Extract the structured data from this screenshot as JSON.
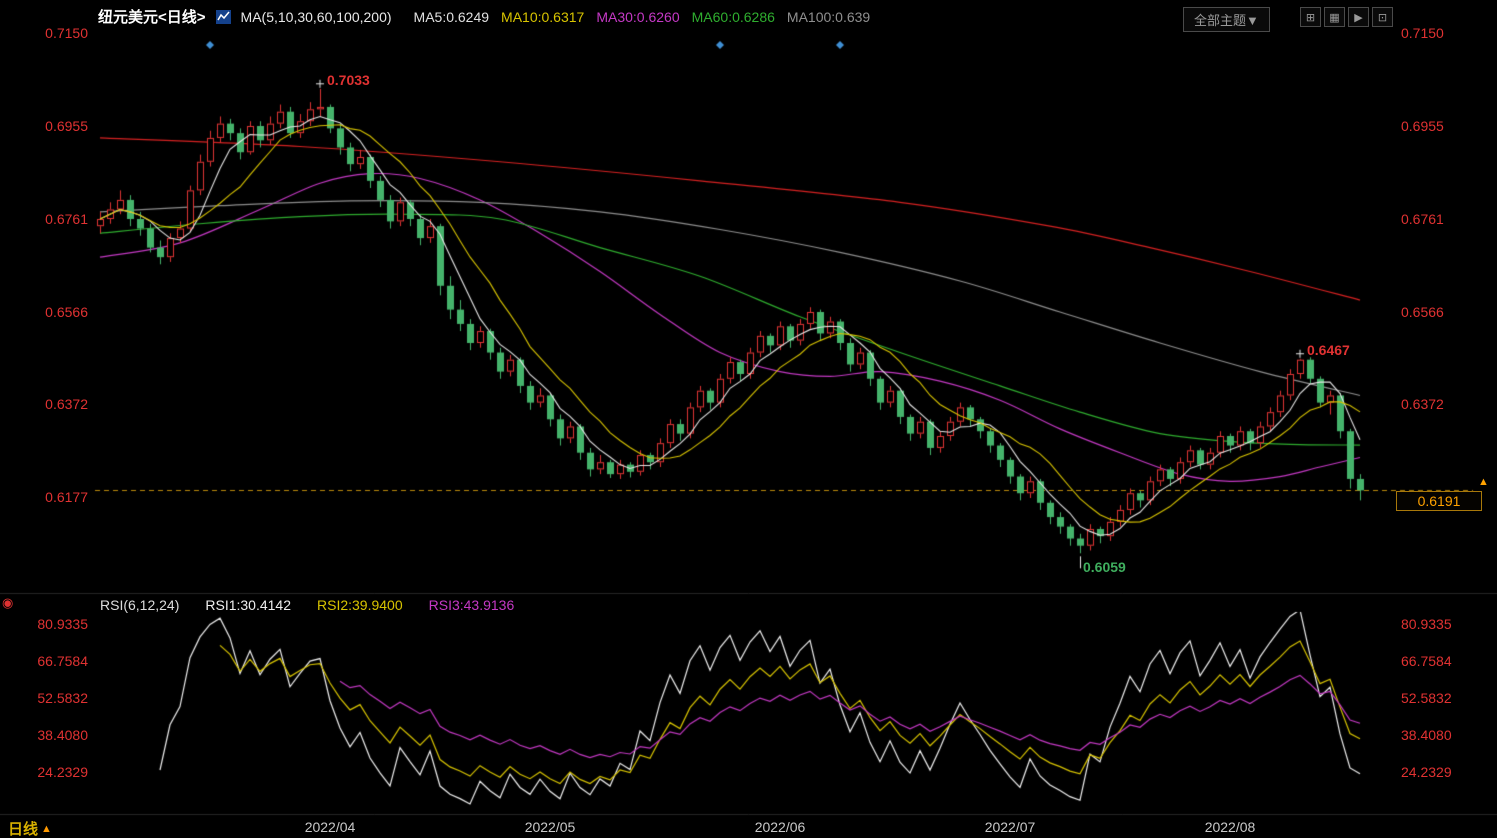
{
  "header": {
    "title": "纽元美元<日线>",
    "ma_group_label": "MA(5,10,30,60,100,200)",
    "ma_values": [
      {
        "name": "MA5",
        "label": "MA5:0.6249",
        "color": "#e0e0e0"
      },
      {
        "name": "MA10",
        "label": "MA10:0.6317",
        "color": "#d8c400"
      },
      {
        "name": "MA30",
        "label": "MA30:0.6260",
        "color": "#c539c5"
      },
      {
        "name": "MA60",
        "label": "MA60:0.6286",
        "color": "#2fae2f"
      },
      {
        "name": "MA100",
        "label": "MA100:0.639",
        "color": "#8f8f8f"
      }
    ],
    "theme_button_label": "全部主题▼",
    "toolbar_icons": [
      {
        "name": "layout-grid-icon",
        "glyph": "⊞"
      },
      {
        "name": "chart-panel-icon",
        "glyph": "▦"
      },
      {
        "name": "play-icon",
        "glyph": "▶"
      },
      {
        "name": "duplicate-window-icon",
        "glyph": "⊡"
      }
    ]
  },
  "rsi_header": {
    "group": "RSI(6,12,24)",
    "rsi1": {
      "label": "RSI1:30.4142",
      "color": "#f0f0f0"
    },
    "rsi2": {
      "label": "RSI2:39.9400",
      "color": "#d8c400"
    },
    "rsi3": {
      "label": "RSI3:43.9136",
      "color": "#c539c5"
    }
  },
  "price_tag": {
    "label": "0.6191"
  },
  "alert_arrow": "▲",
  "footer": {
    "period_label": "日线",
    "arrow": "▲"
  },
  "chart_data": {
    "type": "candlestick",
    "symbol": "纽元美元",
    "period": "日线",
    "colors": {
      "up": "#e13434",
      "down": "#45b36b",
      "axis_label": "#e03232",
      "time_label": "#c8c8c8",
      "dashed_line": "#bb8a0b",
      "price_tag_text": "#ffa200",
      "diamond_marker": "#3f8fd4",
      "separator": "#262626"
    },
    "price_ticks_left": [
      {
        "label": "0.7150",
        "price": 0.715
      },
      {
        "label": "0.6955",
        "price": 0.6955
      },
      {
        "label": "0.6761",
        "price": 0.6761
      },
      {
        "label": "0.6566",
        "price": 0.6566
      },
      {
        "label": "0.6372",
        "price": 0.6372
      },
      {
        "label": "0.6177",
        "price": 0.6177
      }
    ],
    "price_ticks_right": [
      {
        "label": "0.7150",
        "price": 0.715
      },
      {
        "label": "0.6955",
        "price": 0.6955
      },
      {
        "label": "0.6761",
        "price": 0.6761
      },
      {
        "label": "0.6566",
        "price": 0.6566
      },
      {
        "label": "0.6372",
        "price": 0.6372
      }
    ],
    "rsi_ticks": [
      {
        "label": "80.9335",
        "value": 80.9335
      },
      {
        "label": "66.7584",
        "value": 66.7584
      },
      {
        "label": "52.5832",
        "value": 52.5832
      },
      {
        "label": "38.4080",
        "value": 38.408
      },
      {
        "label": "24.2329",
        "value": 24.2329
      }
    ],
    "time_ticks": [
      {
        "label": "2022/04",
        "index": 23
      },
      {
        "label": "2022/05",
        "index": 45
      },
      {
        "label": "2022/06",
        "index": 68
      },
      {
        "label": "2022/07",
        "index": 91
      },
      {
        "label": "2022/08",
        "index": 113
      }
    ],
    "last_price": 0.6191,
    "dashed_line_price": 0.6191,
    "annotations": [
      {
        "text": "0.7033",
        "price": 0.7033,
        "index": 22,
        "color": "#e03232",
        "placement": "above"
      },
      {
        "text": "0.6467",
        "price": 0.6467,
        "index": 120,
        "color": "#e03232",
        "placement": "above"
      },
      {
        "text": "0.6059",
        "price": 0.6059,
        "index": 98,
        "color": "#3fae5e",
        "placement": "below"
      }
    ],
    "event_markers": {
      "shape": "diamond",
      "color": "#3f8fd4",
      "indices": [
        11,
        62,
        74
      ],
      "y": 45
    },
    "computed_ma": [
      {
        "name": "MA5",
        "period": 5,
        "color": "#e8e8e8"
      },
      {
        "name": "MA10",
        "period": 10,
        "color": "#d8c400"
      }
    ],
    "ma_overlays": [
      {
        "name": "MA30",
        "color": "#c539c5",
        "points": [
          [
            0,
            0.668
          ],
          [
            8,
            0.671
          ],
          [
            16,
            0.678
          ],
          [
            22,
            0.6835
          ],
          [
            27,
            0.6855
          ],
          [
            32,
            0.6845
          ],
          [
            38,
            0.68
          ],
          [
            44,
            0.673
          ],
          [
            50,
            0.665
          ],
          [
            56,
            0.656
          ],
          [
            62,
            0.648
          ],
          [
            68,
            0.644
          ],
          [
            73,
            0.643
          ],
          [
            78,
            0.644
          ],
          [
            84,
            0.642
          ],
          [
            90,
            0.638
          ],
          [
            96,
            0.632
          ],
          [
            102,
            0.627
          ],
          [
            108,
            0.6225
          ],
          [
            113,
            0.621
          ],
          [
            118,
            0.622
          ],
          [
            122,
            0.624
          ],
          [
            126,
            0.626
          ]
        ]
      },
      {
        "name": "MA60",
        "color": "#2fae2f",
        "points": [
          [
            0,
            0.673
          ],
          [
            10,
            0.675
          ],
          [
            20,
            0.6765
          ],
          [
            30,
            0.677
          ],
          [
            40,
            0.676
          ],
          [
            50,
            0.67
          ],
          [
            60,
            0.664
          ],
          [
            70,
            0.6555
          ],
          [
            80,
            0.648
          ],
          [
            90,
            0.641
          ],
          [
            98,
            0.6355
          ],
          [
            106,
            0.631
          ],
          [
            114,
            0.6292
          ],
          [
            120,
            0.6287
          ],
          [
            126,
            0.6286
          ]
        ]
      },
      {
        "name": "MA100",
        "color": "#8f8f8f",
        "points": [
          [
            0,
            0.6775
          ],
          [
            12,
            0.6788
          ],
          [
            25,
            0.6798
          ],
          [
            38,
            0.6795
          ],
          [
            50,
            0.6775
          ],
          [
            62,
            0.6738
          ],
          [
            74,
            0.669
          ],
          [
            86,
            0.663
          ],
          [
            96,
            0.6565
          ],
          [
            106,
            0.65
          ],
          [
            116,
            0.644
          ],
          [
            126,
            0.639
          ]
        ]
      },
      {
        "name": "MA200",
        "color": "#d82222",
        "points": [
          [
            0,
            0.693
          ],
          [
            20,
            0.6912
          ],
          [
            40,
            0.688
          ],
          [
            60,
            0.684
          ],
          [
            80,
            0.6795
          ],
          [
            95,
            0.6745
          ],
          [
            105,
            0.67
          ],
          [
            115,
            0.665
          ],
          [
            126,
            0.659
          ]
        ]
      }
    ],
    "rsi": {
      "periods": [
        6,
        12,
        24
      ],
      "colors": [
        "#f0f0f0",
        "#d8c400",
        "#c539c5"
      ],
      "range": [
        24.2329,
        80.9335
      ]
    },
    "candles": [
      [
        0.6745,
        0.6775,
        0.673,
        0.676
      ],
      [
        0.676,
        0.6795,
        0.675,
        0.678
      ],
      [
        0.678,
        0.682,
        0.677,
        0.68
      ],
      [
        0.68,
        0.681,
        0.6745,
        0.676
      ],
      [
        0.676,
        0.6775,
        0.6725,
        0.674
      ],
      [
        0.674,
        0.675,
        0.669,
        0.67
      ],
      [
        0.67,
        0.6715,
        0.6665,
        0.668
      ],
      [
        0.668,
        0.673,
        0.667,
        0.672
      ],
      [
        0.672,
        0.6755,
        0.671,
        0.674
      ],
      [
        0.674,
        0.683,
        0.6735,
        0.682
      ],
      [
        0.682,
        0.6895,
        0.681,
        0.688
      ],
      [
        0.688,
        0.6945,
        0.687,
        0.693
      ],
      [
        0.693,
        0.6975,
        0.692,
        0.696
      ],
      [
        0.696,
        0.697,
        0.6925,
        0.694
      ],
      [
        0.694,
        0.695,
        0.6885,
        0.69
      ],
      [
        0.69,
        0.6965,
        0.6895,
        0.6955
      ],
      [
        0.6955,
        0.6965,
        0.691,
        0.6925
      ],
      [
        0.6925,
        0.6975,
        0.6915,
        0.696
      ],
      [
        0.696,
        0.7,
        0.695,
        0.6985
      ],
      [
        0.6985,
        0.6995,
        0.693,
        0.694
      ],
      [
        0.694,
        0.698,
        0.693,
        0.6965
      ],
      [
        0.6965,
        0.7005,
        0.6955,
        0.699
      ],
      [
        0.699,
        0.7033,
        0.6975,
        0.6995
      ],
      [
        0.6995,
        0.7,
        0.694,
        0.695
      ],
      [
        0.695,
        0.696,
        0.6895,
        0.691
      ],
      [
        0.691,
        0.692,
        0.686,
        0.6875
      ],
      [
        0.6875,
        0.6905,
        0.6865,
        0.689
      ],
      [
        0.689,
        0.6895,
        0.6825,
        0.684
      ],
      [
        0.684,
        0.685,
        0.6785,
        0.68
      ],
      [
        0.68,
        0.681,
        0.674,
        0.6755
      ],
      [
        0.6755,
        0.6805,
        0.6745,
        0.6795
      ],
      [
        0.6795,
        0.68,
        0.6745,
        0.676
      ],
      [
        0.676,
        0.677,
        0.6705,
        0.672
      ],
      [
        0.672,
        0.676,
        0.671,
        0.6745
      ],
      [
        0.6745,
        0.675,
        0.66,
        0.662
      ],
      [
        0.662,
        0.664,
        0.655,
        0.657
      ],
      [
        0.657,
        0.659,
        0.6525,
        0.654
      ],
      [
        0.654,
        0.655,
        0.6485,
        0.65
      ],
      [
        0.65,
        0.6535,
        0.649,
        0.6525
      ],
      [
        0.6525,
        0.653,
        0.6465,
        0.648
      ],
      [
        0.648,
        0.649,
        0.6425,
        0.644
      ],
      [
        0.644,
        0.6475,
        0.643,
        0.6465
      ],
      [
        0.6465,
        0.647,
        0.6395,
        0.641
      ],
      [
        0.641,
        0.642,
        0.636,
        0.6375
      ],
      [
        0.6375,
        0.6405,
        0.6365,
        0.639
      ],
      [
        0.639,
        0.6395,
        0.6325,
        0.634
      ],
      [
        0.634,
        0.635,
        0.6285,
        0.63
      ],
      [
        0.63,
        0.6335,
        0.629,
        0.6325
      ],
      [
        0.6325,
        0.633,
        0.6255,
        0.627
      ],
      [
        0.627,
        0.628,
        0.622,
        0.6235
      ],
      [
        0.6235,
        0.6265,
        0.6225,
        0.625
      ],
      [
        0.625,
        0.6255,
        0.6217,
        0.6225
      ],
      [
        0.6225,
        0.6255,
        0.6215,
        0.6245
      ],
      [
        0.6245,
        0.625,
        0.6218,
        0.623
      ],
      [
        0.623,
        0.6275,
        0.6222,
        0.6265
      ],
      [
        0.6265,
        0.627,
        0.6235,
        0.625
      ],
      [
        0.625,
        0.63,
        0.624,
        0.629
      ],
      [
        0.629,
        0.634,
        0.628,
        0.633
      ],
      [
        0.633,
        0.634,
        0.6295,
        0.631
      ],
      [
        0.631,
        0.6375,
        0.63,
        0.6365
      ],
      [
        0.6365,
        0.641,
        0.6355,
        0.64
      ],
      [
        0.64,
        0.6405,
        0.636,
        0.6375
      ],
      [
        0.6375,
        0.6435,
        0.6365,
        0.6425
      ],
      [
        0.6425,
        0.647,
        0.6415,
        0.646
      ],
      [
        0.646,
        0.6465,
        0.642,
        0.6435
      ],
      [
        0.6435,
        0.649,
        0.6425,
        0.648
      ],
      [
        0.648,
        0.6525,
        0.647,
        0.6515
      ],
      [
        0.6515,
        0.652,
        0.648,
        0.6495
      ],
      [
        0.6495,
        0.6545,
        0.6485,
        0.6535
      ],
      [
        0.6535,
        0.654,
        0.649,
        0.6505
      ],
      [
        0.6505,
        0.655,
        0.6495,
        0.654
      ],
      [
        0.654,
        0.6575,
        0.653,
        0.6565
      ],
      [
        0.6565,
        0.657,
        0.6505,
        0.652
      ],
      [
        0.652,
        0.6555,
        0.651,
        0.6545
      ],
      [
        0.6545,
        0.655,
        0.6485,
        0.65
      ],
      [
        0.65,
        0.651,
        0.644,
        0.6455
      ],
      [
        0.6455,
        0.649,
        0.6445,
        0.648
      ],
      [
        0.648,
        0.6485,
        0.641,
        0.6425
      ],
      [
        0.6425,
        0.643,
        0.636,
        0.6375
      ],
      [
        0.6375,
        0.641,
        0.6365,
        0.64
      ],
      [
        0.64,
        0.6405,
        0.633,
        0.6345
      ],
      [
        0.6345,
        0.635,
        0.6295,
        0.631
      ],
      [
        0.631,
        0.6345,
        0.63,
        0.6335
      ],
      [
        0.6335,
        0.634,
        0.6265,
        0.628
      ],
      [
        0.628,
        0.6315,
        0.627,
        0.6305
      ],
      [
        0.6305,
        0.6345,
        0.6295,
        0.6335
      ],
      [
        0.6335,
        0.6375,
        0.6325,
        0.6365
      ],
      [
        0.6365,
        0.637,
        0.6325,
        0.634
      ],
      [
        0.634,
        0.6345,
        0.63,
        0.6315
      ],
      [
        0.6315,
        0.632,
        0.627,
        0.6285
      ],
      [
        0.6285,
        0.629,
        0.624,
        0.6255
      ],
      [
        0.6255,
        0.626,
        0.6205,
        0.622
      ],
      [
        0.622,
        0.6225,
        0.617,
        0.6185
      ],
      [
        0.6185,
        0.622,
        0.6175,
        0.621
      ],
      [
        0.621,
        0.6215,
        0.615,
        0.6165
      ],
      [
        0.6165,
        0.617,
        0.612,
        0.6135
      ],
      [
        0.6135,
        0.6145,
        0.61,
        0.6115
      ],
      [
        0.6115,
        0.612,
        0.6075,
        0.609
      ],
      [
        0.609,
        0.61,
        0.6059,
        0.6075
      ],
      [
        0.6075,
        0.612,
        0.6065,
        0.611
      ],
      [
        0.611,
        0.6115,
        0.608,
        0.6095
      ],
      [
        0.6095,
        0.6135,
        0.6085,
        0.6125
      ],
      [
        0.6125,
        0.616,
        0.6115,
        0.615
      ],
      [
        0.615,
        0.6195,
        0.614,
        0.6185
      ],
      [
        0.6185,
        0.619,
        0.6155,
        0.617
      ],
      [
        0.617,
        0.622,
        0.616,
        0.621
      ],
      [
        0.621,
        0.6245,
        0.62,
        0.6235
      ],
      [
        0.6235,
        0.624,
        0.62,
        0.6215
      ],
      [
        0.6215,
        0.626,
        0.6205,
        0.625
      ],
      [
        0.625,
        0.6285,
        0.624,
        0.6275
      ],
      [
        0.6275,
        0.628,
        0.6235,
        0.6245
      ],
      [
        0.6245,
        0.628,
        0.6235,
        0.627
      ],
      [
        0.627,
        0.6315,
        0.626,
        0.6305
      ],
      [
        0.6305,
        0.631,
        0.627,
        0.6285
      ],
      [
        0.6285,
        0.6325,
        0.6275,
        0.6315
      ],
      [
        0.6315,
        0.632,
        0.6275,
        0.629
      ],
      [
        0.629,
        0.6335,
        0.628,
        0.6325
      ],
      [
        0.6325,
        0.6365,
        0.6315,
        0.6355
      ],
      [
        0.6355,
        0.64,
        0.6345,
        0.639
      ],
      [
        0.639,
        0.6445,
        0.638,
        0.6435
      ],
      [
        0.6435,
        0.6467,
        0.6425,
        0.6465
      ],
      [
        0.6465,
        0.647,
        0.6415,
        0.6425
      ],
      [
        0.6425,
        0.643,
        0.6365,
        0.6375
      ],
      [
        0.6375,
        0.64,
        0.635,
        0.639
      ],
      [
        0.639,
        0.6395,
        0.63,
        0.6315
      ],
      [
        0.6315,
        0.632,
        0.6195,
        0.6215
      ],
      [
        0.6215,
        0.6225,
        0.617,
        0.6191
      ]
    ]
  }
}
